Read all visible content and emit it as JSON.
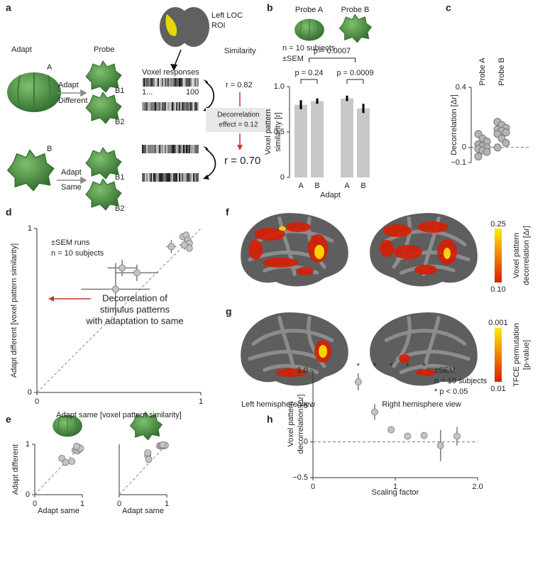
{
  "figure_a": {
    "panel": "a",
    "roi_label": [
      "Left LOC",
      "ROI"
    ],
    "column_headers": {
      "adapt": "Adapt",
      "probe": "Probe",
      "similarity": "Similarity"
    },
    "voxel_title": "Voxel responses",
    "voxel_range": [
      "1...",
      "100"
    ],
    "conditions": [
      {
        "adapt_shape": "A",
        "adapt_label": [
          "Adapt",
          "Different"
        ],
        "probes": [
          "B1",
          "B2"
        ]
      },
      {
        "adapt_shape": "B",
        "adapt_label": [
          "Adapt",
          "Same"
        ],
        "probes": [
          "B1",
          "B2"
        ]
      }
    ],
    "r_different": "r = 0.82",
    "effect": [
      "Decorrelation",
      "effect = 0.12"
    ],
    "r_same": "r = 0.70"
  },
  "chart_data": [
    {
      "type": "bar",
      "panel": "b",
      "categories": [
        "A",
        "B",
        "A",
        "B"
      ],
      "values": [
        0.8,
        0.84,
        0.87,
        0.76
      ],
      "errors": [
        0.05,
        0.03,
        0.03,
        0.05
      ],
      "color": "#c8c8c8",
      "ylim": [
        0,
        1
      ],
      "yticks": [
        0,
        0.5,
        {
          "value": 1,
          "label": "1.0"
        }
      ],
      "y_label": [
        "Voxel pattern",
        "similarity [r]"
      ],
      "x_label": "Adapt",
      "probe_labels": [
        "Probe A",
        "Probe B"
      ],
      "annotations": [
        "n = 10 subjects",
        "±SEM"
      ],
      "p_values": [
        "p = 0.0007",
        "p = 0.24",
        "p = 0.0009"
      ]
    },
    {
      "type": "strip",
      "panel": "c",
      "categories": [
        "Probe A",
        "Probe B"
      ],
      "values": [
        [
          0.09,
          0.06,
          0.04,
          0.02,
          0.01,
          0.0,
          -0.01,
          -0.02,
          -0.03,
          -0.06
        ],
        [
          0.17,
          0.15,
          0.13,
          0.12,
          0.11,
          0.1,
          0.09,
          0.06,
          0.03,
          0.0
        ]
      ],
      "color": "#b4b4b4",
      "ylim": [
        -0.1,
        0.4
      ],
      "yticks": [
        {
          "value": -0.1,
          "label": "−0.1"
        },
        0,
        0.4
      ],
      "zero_line": true,
      "y_label": [
        "Decorrelation [Δr]"
      ]
    },
    {
      "type": "errorscatter",
      "panel": "d",
      "x": [
        0.89,
        0.91,
        0.92,
        0.93,
        0.9,
        0.93,
        0.82,
        0.52,
        0.61,
        0.48
      ],
      "values": [
        0.95,
        0.96,
        0.93,
        0.91,
        0.9,
        0.88,
        0.89,
        0.76,
        0.73,
        0.63
      ],
      "x_errors": [
        0.02,
        0.02,
        0.02,
        0.02,
        0.03,
        0.02,
        0.03,
        0.09,
        0.13,
        0.21
      ],
      "y_errors": [
        0.02,
        0.02,
        0.02,
        0.02,
        0.03,
        0.02,
        0.04,
        0.05,
        0.05,
        0.16
      ],
      "color": "#c4c4c4",
      "xlim": [
        0,
        1
      ],
      "ylim": [
        0,
        1
      ],
      "xticks": [
        0,
        1
      ],
      "yticks": [
        0,
        1
      ],
      "diagonal": true,
      "x_label": "Adapt same [voxel pattern similarity]",
      "y_label": [
        "Adapt different [voxel pattern similarity]"
      ],
      "annotations": [
        "±SEM runs",
        "n = 10 subjects"
      ],
      "arrow_label": [
        "Decorrelation of",
        "stimulus patterns",
        "with adaptation to same"
      ]
    },
    {
      "type": "scatter",
      "panel": "e",
      "x": [
        0.57,
        0.65,
        0.78,
        0.85,
        0.88,
        0.92,
        0.9,
        0.94,
        0.96,
        0.88
      ],
      "values": [
        0.72,
        0.64,
        0.66,
        0.88,
        0.92,
        0.94,
        0.87,
        0.9,
        0.92,
        0.96
      ],
      "color": "#c4c4c4",
      "xlim": [
        0,
        1
      ],
      "ylim": [
        0,
        1
      ],
      "xticks": [
        0,
        1
      ],
      "yticks": [
        0,
        1
      ],
      "diagonal": true,
      "x_label": "Adapt same",
      "y_label": [
        "Adapt different"
      ]
    },
    {
      "type": "scatter",
      "x": [
        0.6,
        0.6,
        0.62,
        0.85,
        0.88,
        0.9,
        0.93,
        0.95,
        0.97,
        0.92
      ],
      "values": [
        0.78,
        0.83,
        0.7,
        0.97,
        0.97,
        0.97,
        0.97,
        0.97,
        0.98,
        0.99
      ],
      "color": "#c4c4c4",
      "xlim": [
        0,
        1
      ],
      "ylim": [
        0,
        1
      ],
      "xticks": [
        0,
        1
      ],
      "diagonal": true,
      "x_label": "Adapt same"
    },
    {
      "type": "errorscatter",
      "panel": "h",
      "x": [
        0.55,
        0.75,
        0.95,
        1.15,
        1.35,
        1.55,
        1.75
      ],
      "values": [
        0.84,
        0.42,
        0.17,
        0.08,
        0.09,
        -0.05,
        0.08
      ],
      "y_errors": [
        0.12,
        0.11,
        0.04,
        0.02,
        0.03,
        0.22,
        0.13
      ],
      "significance": [
        "*",
        "*",
        "*",
        "*",
        "*",
        null,
        null
      ],
      "color": "#c4c4c4",
      "xlim": [
        0,
        2
      ],
      "ylim": [
        -0.5,
        1
      ],
      "xticks": [
        0,
        1,
        {
          "value": 2,
          "label": "2.0"
        }
      ],
      "yticks": [
        {
          "value": -0.5,
          "label": "−0.5"
        },
        0,
        0.5,
        {
          "value": 1,
          "label": "1.0"
        }
      ],
      "zero_line": true,
      "x_label": "Scaling factor",
      "y_label": [
        "Voxel pattern",
        "decorrelation [Δr]"
      ],
      "annotations": [
        "±SEM",
        "n = 10 subjects",
        "* p < 0.05"
      ]
    }
  ],
  "figure_fg": {
    "panels": [
      "f",
      "g"
    ],
    "colorbars": [
      {
        "max": "0.25",
        "min": "0.10",
        "label": [
          "Voxel pattern",
          "decorrelation [Δr]"
        ]
      },
      {
        "max": "0.001",
        "min": "0.01",
        "label": [
          "TFCE permutation",
          "[p-value]"
        ]
      }
    ],
    "views": [
      "Left hemisphere view",
      "Right hemisphere view"
    ]
  }
}
